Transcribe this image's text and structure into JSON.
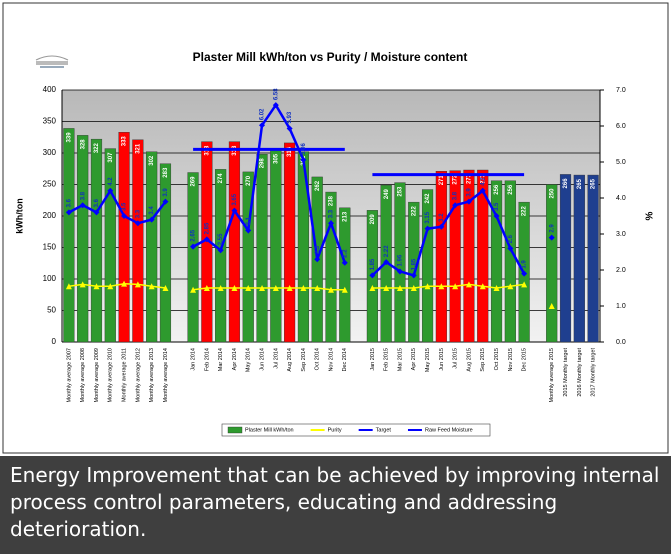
{
  "chart_data": {
    "type": "bar",
    "title": "Plaster Mill kWh/ton vs Purity / Moisture content",
    "y_label": "kWh/ton",
    "y2_label": "%",
    "categories": [
      "Monthly average 2007",
      "Monthly average 2008",
      "Monthly average 2009",
      "Monthly average 2010",
      "Monthly average 2011",
      "Monthly average 2012",
      "Monthly average 2013",
      "Monthly average 2014",
      null,
      "Jan 2014",
      "Feb 2014",
      "Mar 2014",
      "Apr 2014",
      "May 2014",
      "Jun 2014",
      "Jul 2014",
      "Aug 2014",
      "Sep 2014",
      "Oct 2014",
      "Nov 2014",
      "Dec 2014",
      null,
      "Jan 2015",
      "Feb 2015",
      "Mar 2015",
      "Apr 2015",
      "May 2015",
      "Jun 2015",
      "Jul 2015",
      "Aug 2015",
      "Sep 2015",
      "Oct 2015",
      "Nov 2015",
      "Dec 2015",
      null,
      "Monthly average 2015",
      "2015 Monthly target",
      "2016 Monthly target",
      "2017 Monthly target"
    ],
    "series": [
      {
        "name": "Plaster Mill kWh/ton",
        "type": "bar",
        "color": "#2e9a2e",
        "colors": [
          "#2e9a2e",
          "#2e9a2e",
          "#2e9a2e",
          "#2e9a2e",
          "#ff0000",
          "#ff0000",
          "#2e9a2e",
          "#2e9a2e",
          null,
          "#2e9a2e",
          "#ff0000",
          "#2e9a2e",
          "#ff0000",
          "#2e9a2e",
          "#2e9a2e",
          "#2e9a2e",
          "#ff0000",
          "#2e9a2e",
          "#2e9a2e",
          "#2e9a2e",
          "#2e9a2e",
          null,
          "#2e9a2e",
          "#2e9a2e",
          "#2e9a2e",
          "#2e9a2e",
          "#2e9a2e",
          "#ff0000",
          "#ff0000",
          "#ff0000",
          "#ff0000",
          "#2e9a2e",
          "#2e9a2e",
          "#2e9a2e",
          null,
          "#2e9a2e",
          "#1f3f8f",
          "#1f3f8f",
          "#1f3f8f"
        ],
        "values": [
          339,
          328,
          322,
          307,
          333,
          321,
          302,
          283,
          null,
          269,
          318,
          274,
          318,
          270,
          298,
          305,
          316,
          302,
          262,
          238,
          213,
          null,
          209,
          249,
          253,
          222,
          242,
          271,
          272,
          273,
          273,
          256,
          256,
          222,
          null,
          250,
          266,
          265,
          265
        ]
      },
      {
        "name": "Purity",
        "type": "line",
        "axis": "y2",
        "color": "#ffff00",
        "marker": "triangle",
        "values": [
          1.55,
          1.6,
          1.55,
          1.55,
          1.62,
          1.6,
          1.55,
          1.5,
          null,
          1.45,
          1.5,
          1.5,
          1.5,
          1.5,
          1.5,
          1.5,
          1.5,
          1.5,
          1.5,
          1.45,
          1.45,
          null,
          1.5,
          1.5,
          1.5,
          1.5,
          1.55,
          1.55,
          1.55,
          1.6,
          1.55,
          1.5,
          1.55,
          1.6,
          null,
          1.0,
          null,
          null,
          null
        ]
      },
      {
        "name": "Target",
        "type": "line",
        "axis": "y2",
        "color": "#0000ff",
        "width": 3,
        "values": [
          null,
          null,
          null,
          null,
          null,
          null,
          null,
          null,
          null,
          5.35,
          5.35,
          5.35,
          5.35,
          5.35,
          5.35,
          5.35,
          5.35,
          5.35,
          5.35,
          5.35,
          5.35,
          null,
          4.65,
          4.65,
          4.65,
          4.65,
          4.65,
          4.65,
          4.65,
          4.65,
          4.65,
          4.65,
          4.65,
          4.65,
          null,
          null,
          null,
          null,
          null
        ]
      },
      {
        "name": "Raw Feed Moisture",
        "type": "line",
        "axis": "y2",
        "color": "#0000ff",
        "width": 2.5,
        "marker": "diamond",
        "values": [
          3.6,
          3.8,
          3.6,
          4.2,
          3.5,
          3.3,
          3.4,
          3.9,
          null,
          2.65,
          2.85,
          2.55,
          3.65,
          3.1,
          6.02,
          6.58,
          5.93,
          5.06,
          2.3,
          3.3,
          2.2,
          null,
          1.85,
          2.22,
          1.96,
          1.85,
          3.15,
          3.2,
          3.8,
          3.9,
          4.2,
          3.5,
          2.6,
          1.9,
          null,
          2.9,
          null,
          null,
          null
        ]
      }
    ],
    "ylim": [
      0,
      400
    ],
    "yticks": [
      0,
      50,
      100,
      150,
      200,
      250,
      300,
      350,
      400
    ],
    "y2lim": [
      0,
      7
    ],
    "y2ticks": [
      {
        "value": 0,
        "label": "0.0"
      },
      {
        "value": 1,
        "label": "1.0"
      },
      {
        "value": 2,
        "label": "2.0"
      },
      {
        "value": 3,
        "label": "3.0"
      },
      {
        "value": 4,
        "label": "4.0"
      },
      {
        "value": 5,
        "label": "5.0"
      },
      {
        "value": 6,
        "label": "6.0"
      },
      {
        "value": 7,
        "label": "7.0"
      }
    ],
    "grid": true,
    "legend": "bottom"
  },
  "caption": "Energy Improvement that can be achieved by improving internal process control parameters, educating and addressing deterioration."
}
